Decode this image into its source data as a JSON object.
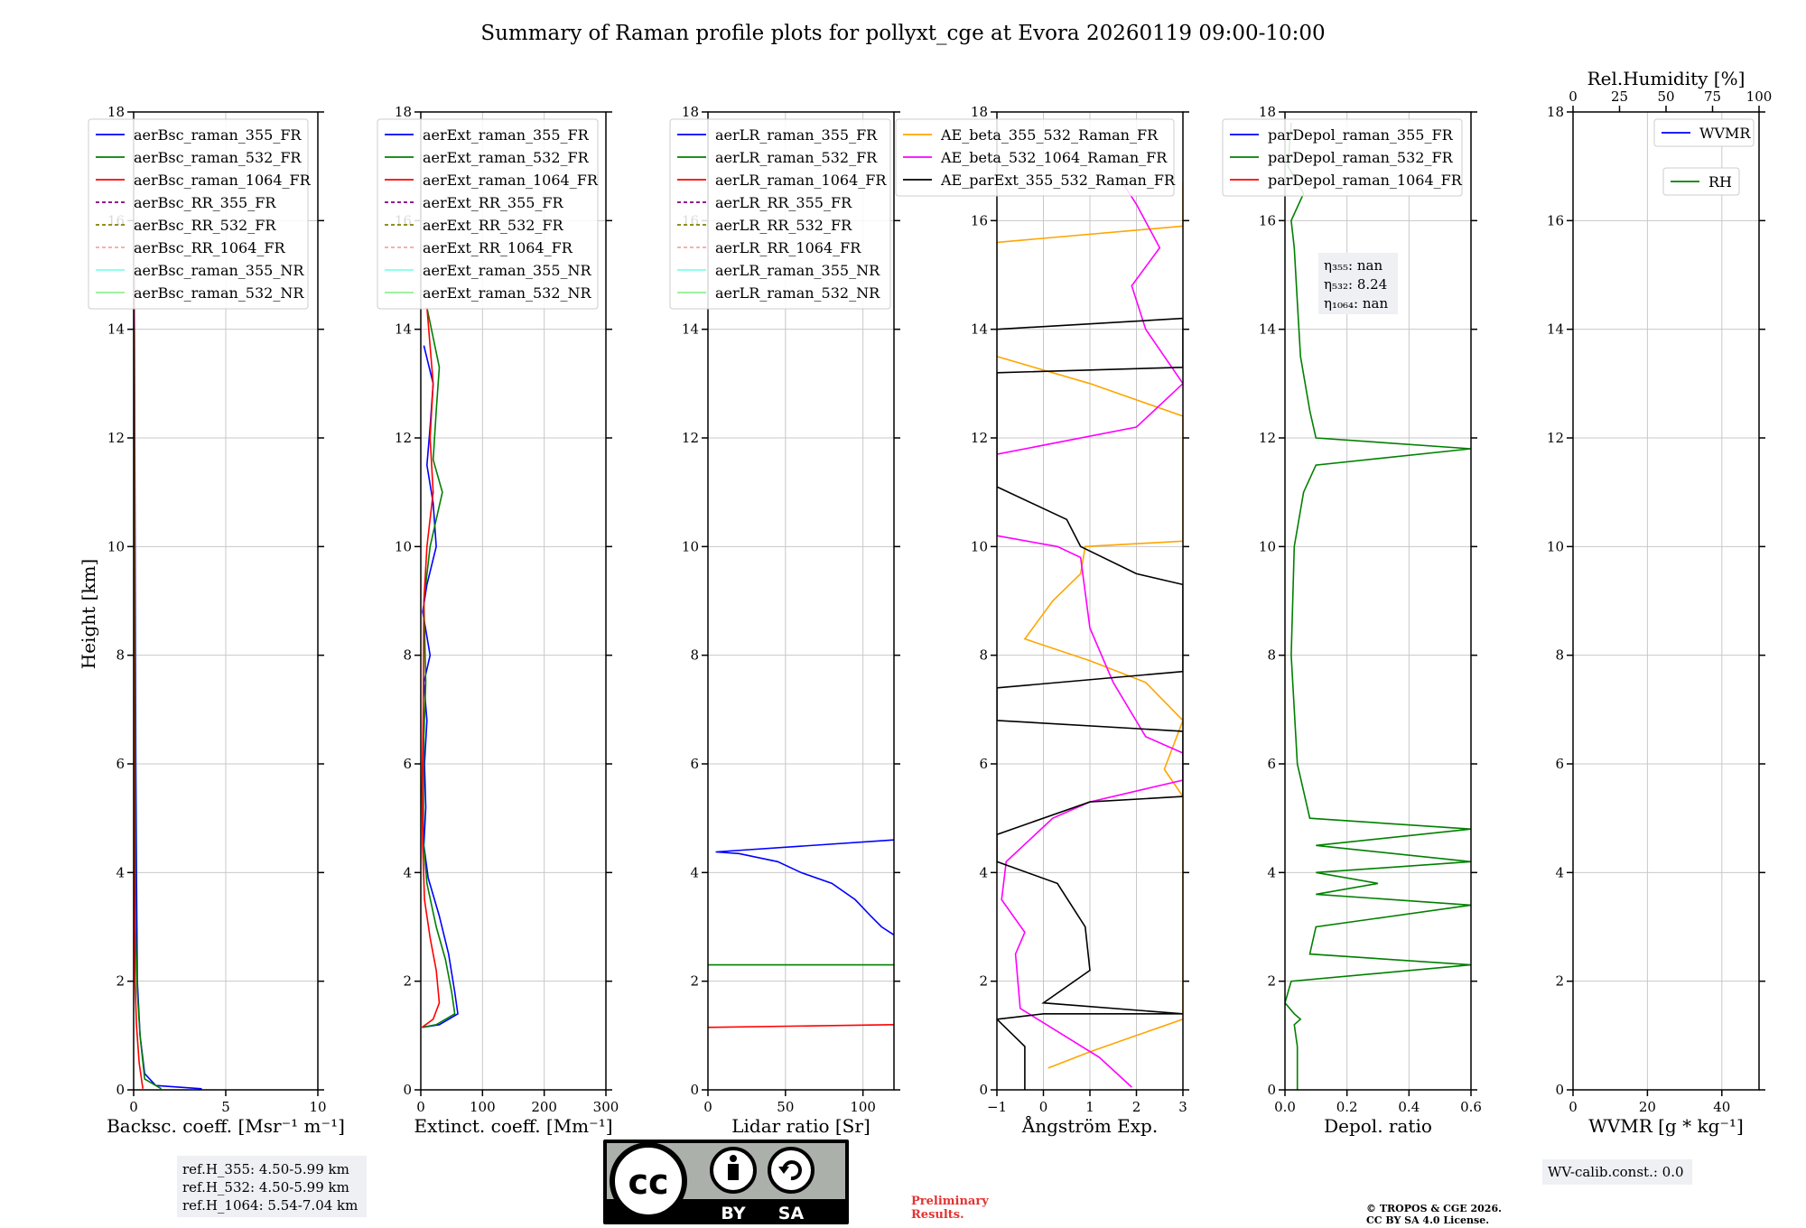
{
  "title": "Summary of Raman profile plots for pollyxt_cge at Evora 20260119 09:00-10:00",
  "ylabel": "Height [km]",
  "colors": {
    "blue": "#0000ff",
    "green": "#008000",
    "red": "#ff0000",
    "purple": "#800080",
    "olive": "#808000",
    "salmon": "#f4a6a6",
    "cyan": "#7fffe8",
    "lightgreen": "#90ee90",
    "orange": "#ffa500",
    "magenta": "#ff00ff",
    "black": "#000000",
    "grid": "#c8c8c8"
  },
  "chart_data": [
    {
      "type": "line",
      "id": "bsc",
      "xlabel": "Backsc. coeff. [Msr⁻¹ m⁻¹]",
      "xlim": [
        0,
        10
      ],
      "ylim": [
        0,
        18
      ],
      "xticks": [
        "0",
        "5",
        "10"
      ],
      "yticks": [
        "0",
        "2",
        "4",
        "6",
        "8",
        "10",
        "12",
        "14",
        "16",
        "18"
      ],
      "legend": [
        "aerBsc_raman_355_FR",
        "aerBsc_raman_532_FR",
        "aerBsc_raman_1064_FR",
        "aerBsc_RR_355_FR",
        "aerBsc_RR_532_FR",
        "aerBsc_RR_1064_FR",
        "aerBsc_raman_355_NR",
        "aerBsc_raman_532_NR"
      ],
      "series": [
        {
          "name": "aerBsc_raman_355_FR",
          "color": "blue",
          "points": [
            [
              3.7,
              0.02
            ],
            [
              1.2,
              0.08
            ],
            [
              0.6,
              0.3
            ],
            [
              0.35,
              1.0
            ],
            [
              0.2,
              2.0
            ],
            [
              0.15,
              4.0
            ],
            [
              0.12,
              6.0
            ],
            [
              0.1,
              8.0
            ],
            [
              0.08,
              10.0
            ],
            [
              0.06,
              12.0
            ],
            [
              0.04,
              14.0
            ],
            [
              0.02,
              15.0
            ]
          ]
        },
        {
          "name": "aerBsc_raman_532_FR",
          "color": "green",
          "points": [
            [
              1.5,
              0.02
            ],
            [
              0.6,
              0.2
            ],
            [
              0.35,
              1.0
            ],
            [
              0.2,
              1.8
            ],
            [
              0.1,
              3.0
            ],
            [
              0.08,
              6.0
            ],
            [
              0.06,
              10.0
            ],
            [
              0.04,
              14.0
            ]
          ]
        },
        {
          "name": "aerBsc_raman_1064_FR",
          "color": "red",
          "points": [
            [
              0.5,
              0.02
            ],
            [
              0.3,
              0.5
            ],
            [
              0.15,
              1.2
            ],
            [
              0.08,
              2.0
            ],
            [
              0.04,
              4.0
            ],
            [
              0.03,
              8.0
            ],
            [
              0.02,
              12.0
            ],
            [
              0.02,
              15.0
            ]
          ]
        }
      ]
    },
    {
      "type": "line",
      "id": "ext",
      "xlabel": "Extinct. coeff. [Mm⁻¹]",
      "xlim": [
        0,
        300
      ],
      "ylim": [
        0,
        18
      ],
      "xticks": [
        "0",
        "100",
        "200",
        "300"
      ],
      "yticks": [
        "0",
        "2",
        "4",
        "6",
        "8",
        "10",
        "12",
        "14",
        "16",
        "18"
      ],
      "legend": [
        "aerExt_raman_355_FR",
        "aerExt_raman_532_FR",
        "aerExt_raman_1064_FR",
        "aerExt_RR_355_FR",
        "aerExt_RR_532_FR",
        "aerExt_RR_1064_FR",
        "aerExt_raman_355_NR",
        "aerExt_raman_532_NR"
      ],
      "series": [
        {
          "name": "aerExt_raman_355_FR",
          "color": "blue",
          "points": [
            [
              2,
              1.15
            ],
            [
              30,
              1.2
            ],
            [
              60,
              1.4
            ],
            [
              55,
              1.8
            ],
            [
              45,
              2.5
            ],
            [
              30,
              3.2
            ],
            [
              12,
              3.9
            ],
            [
              5,
              4.5
            ],
            [
              8,
              5.2
            ],
            [
              6,
              6.0
            ],
            [
              10,
              6.8
            ],
            [
              5,
              7.5
            ],
            [
              15,
              8.0
            ],
            [
              3,
              8.8
            ],
            [
              10,
              9.3
            ],
            [
              25,
              10.0
            ],
            [
              20,
              10.8
            ],
            [
              10,
              11.5
            ],
            [
              15,
              12.2
            ],
            [
              20,
              13.0
            ],
            [
              5,
              13.7
            ]
          ]
        },
        {
          "name": "aerExt_raman_532_FR",
          "color": "green",
          "points": [
            [
              2,
              1.15
            ],
            [
              25,
              1.2
            ],
            [
              55,
              1.4
            ],
            [
              50,
              1.8
            ],
            [
              40,
              2.4
            ],
            [
              25,
              3.0
            ],
            [
              10,
              3.8
            ],
            [
              4,
              4.6
            ],
            [
              5,
              6.5
            ],
            [
              8,
              7.5
            ],
            [
              5,
              9.0
            ],
            [
              15,
              10.0
            ],
            [
              35,
              11.0
            ],
            [
              20,
              11.6
            ],
            [
              25,
              12.5
            ],
            [
              30,
              13.3
            ],
            [
              10,
              14.4
            ]
          ]
        },
        {
          "name": "aerExt_raman_1064_FR",
          "color": "red",
          "points": [
            [
              2,
              1.15
            ],
            [
              20,
              1.3
            ],
            [
              30,
              1.6
            ],
            [
              25,
              2.2
            ],
            [
              15,
              2.8
            ],
            [
              6,
              3.5
            ],
            [
              3,
              4.5
            ],
            [
              2,
              5.5
            ],
            [
              4,
              7.0
            ],
            [
              5,
              9.0
            ],
            [
              10,
              10.0
            ],
            [
              20,
              11.0
            ],
            [
              15,
              12.0
            ],
            [
              20,
              13.0
            ],
            [
              10,
              14.4
            ]
          ]
        }
      ]
    },
    {
      "type": "line",
      "id": "lr",
      "xlabel": "Lidar ratio [Sr]",
      "xlim": [
        0,
        120
      ],
      "ylim": [
        0,
        18
      ],
      "xticks": [
        "0",
        "50",
        "100"
      ],
      "yticks": [
        "0",
        "2",
        "4",
        "6",
        "8",
        "10",
        "12",
        "14",
        "16",
        "18"
      ],
      "legend": [
        "aerLR_raman_355_FR",
        "aerLR_raman_532_FR",
        "aerLR_raman_1064_FR",
        "aerLR_RR_355_FR",
        "aerLR_RR_532_FR",
        "aerLR_RR_1064_FR",
        "aerLR_raman_355_NR",
        "aerLR_raman_532_NR"
      ],
      "series": [
        {
          "name": "aerLR_raman_355_FR",
          "color": "blue",
          "points": [
            [
              120,
              2.85
            ],
            [
              112,
              3.0
            ],
            [
              105,
              3.2
            ],
            [
              95,
              3.5
            ],
            [
              80,
              3.8
            ],
            [
              60,
              4.0
            ],
            [
              45,
              4.2
            ],
            [
              20,
              4.35
            ],
            [
              5,
              4.38
            ],
            [
              120,
              4.6
            ]
          ]
        },
        {
          "name": "aerLR_raman_532_FR",
          "color": "green",
          "points": [
            [
              0,
              2.3
            ],
            [
              120,
              2.3
            ]
          ]
        },
        {
          "name": "aerLR_raman_1064_FR",
          "color": "red",
          "points": [
            [
              0,
              1.15
            ],
            [
              120,
              1.2
            ]
          ]
        }
      ]
    },
    {
      "type": "line",
      "id": "ae",
      "xlabel": "Ångström Exp.",
      "xlim": [
        -1,
        3
      ],
      "ylim": [
        0,
        18
      ],
      "xticks": [
        "−1",
        "0",
        "1",
        "2",
        "3"
      ],
      "yticks": [
        "0",
        "2",
        "4",
        "6",
        "8",
        "10",
        "12",
        "14",
        "16",
        "18"
      ],
      "legend": [
        "AE_beta_355_532_Raman_FR",
        "AE_beta_532_1064_Raman_FR",
        "AE_parExt_355_532_Raman_FR"
      ],
      "series": [
        {
          "name": "AE_beta_355_532_Raman_FR",
          "color": "orange",
          "points": [
            [
              0.1,
              0.4
            ],
            [
              1.0,
              0.7
            ],
            [
              2.0,
              1.0
            ],
            [
              3.0,
              1.3
            ],
            [
              3.0,
              5.4
            ],
            [
              2.6,
              5.9
            ],
            [
              3.0,
              6.8
            ],
            [
              2.2,
              7.5
            ],
            [
              1.0,
              7.9
            ],
            [
              -0.4,
              8.3
            ],
            [
              0.2,
              9.0
            ],
            [
              0.8,
              9.5
            ],
            [
              0.9,
              10.0
            ],
            [
              3.0,
              10.1
            ],
            [
              3.0,
              12.4
            ],
            [
              1.0,
              13.0
            ],
            [
              -1.0,
              13.5
            ],
            [
              -1.0,
              15.6
            ],
            [
              3.0,
              15.9
            ],
            [
              3.0,
              16.7
            ]
          ]
        },
        {
          "name": "AE_beta_532_1064_Raman_FR",
          "color": "magenta",
          "points": [
            [
              1.9,
              0.05
            ],
            [
              1.2,
              0.6
            ],
            [
              -0.5,
              1.5
            ],
            [
              -0.6,
              2.5
            ],
            [
              -0.4,
              2.9
            ],
            [
              -0.9,
              3.5
            ],
            [
              -0.8,
              4.2
            ],
            [
              0.2,
              5.0
            ],
            [
              1.0,
              5.3
            ],
            [
              3.0,
              5.7
            ],
            [
              3.0,
              6.2
            ],
            [
              2.2,
              6.5
            ],
            [
              1.5,
              7.5
            ],
            [
              1.0,
              8.5
            ],
            [
              0.8,
              9.8
            ],
            [
              0.3,
              10.0
            ],
            [
              -1.0,
              10.2
            ],
            [
              -1.0,
              11.7
            ],
            [
              2.0,
              12.2
            ],
            [
              3.0,
              13.0
            ],
            [
              2.2,
              14.0
            ],
            [
              1.9,
              14.8
            ],
            [
              2.5,
              15.5
            ],
            [
              2.0,
              16.3
            ],
            [
              1.7,
              16.7
            ]
          ]
        },
        {
          "name": "AE_parExt_355_532_Raman_FR",
          "color": "black",
          "points": [
            [
              -0.4,
              0.0
            ],
            [
              -0.4,
              0.8
            ],
            [
              -1.0,
              1.3
            ],
            [
              0.0,
              1.4
            ],
            [
              3.0,
              1.4
            ],
            [
              0.0,
              1.6
            ],
            [
              1.0,
              2.2
            ],
            [
              0.9,
              3.0
            ],
            [
              0.3,
              3.8
            ],
            [
              -1.0,
              4.2
            ],
            [
              -1.0,
              4.7
            ],
            [
              1.0,
              5.3
            ],
            [
              3.0,
              5.4
            ],
            [
              3.0,
              6.6
            ],
            [
              -1.0,
              6.8
            ],
            [
              -1.0,
              7.4
            ],
            [
              3.0,
              7.7
            ],
            [
              3.0,
              9.3
            ],
            [
              2.0,
              9.5
            ],
            [
              0.8,
              10.0
            ],
            [
              0.5,
              10.5
            ],
            [
              -1.0,
              11.1
            ],
            [
              -1.0,
              13.2
            ],
            [
              3.0,
              13.3
            ],
            [
              3.0,
              14.2
            ],
            [
              -1.0,
              14.0
            ]
          ]
        }
      ]
    },
    {
      "type": "line",
      "id": "depol",
      "xlabel": "Depol. ratio",
      "xlim": [
        0.0,
        0.6
      ],
      "ylim": [
        0,
        18
      ],
      "xticks": [
        "0.0",
        "0.2",
        "0.4",
        "0.6"
      ],
      "yticks": [
        "0",
        "2",
        "4",
        "6",
        "8",
        "10",
        "12",
        "14",
        "16",
        "18"
      ],
      "legend": [
        "parDepol_raman_355_FR",
        "parDepol_raman_532_FR",
        "parDepol_raman_1064_FR"
      ],
      "annotation": [
        "η₃₅₅: nan",
        "η₅₃₂: 8.24",
        "η₁₀₆₄: nan"
      ],
      "series": [
        {
          "name": "parDepol_raman_532_FR",
          "color": "green",
          "points": [
            [
              0.04,
              0.0
            ],
            [
              0.04,
              0.8
            ],
            [
              0.03,
              1.2
            ],
            [
              0.05,
              1.3
            ],
            [
              0.03,
              1.4
            ],
            [
              0.0,
              1.6
            ],
            [
              0.02,
              2.0
            ],
            [
              0.6,
              2.3
            ],
            [
              0.08,
              2.5
            ],
            [
              0.1,
              3.0
            ],
            [
              0.6,
              3.4
            ],
            [
              0.1,
              3.6
            ],
            [
              0.3,
              3.8
            ],
            [
              0.1,
              4.0
            ],
            [
              0.6,
              4.2
            ],
            [
              0.1,
              4.5
            ],
            [
              0.6,
              4.8
            ],
            [
              0.08,
              5.0
            ],
            [
              0.06,
              5.5
            ],
            [
              0.04,
              6.0
            ],
            [
              0.02,
              8.0
            ],
            [
              0.03,
              10.0
            ],
            [
              0.06,
              11.0
            ],
            [
              0.1,
              11.5
            ],
            [
              0.6,
              11.8
            ],
            [
              0.1,
              12.0
            ],
            [
              0.08,
              12.5
            ],
            [
              0.05,
              13.5
            ],
            [
              0.04,
              14.5
            ],
            [
              0.03,
              15.5
            ],
            [
              0.02,
              16.0
            ],
            [
              0.06,
              16.5
            ],
            [
              0.01,
              17.0
            ],
            [
              0.02,
              17.8
            ]
          ]
        }
      ]
    },
    {
      "type": "line",
      "id": "wv",
      "xlabel": "WVMR [g * kg⁻¹]",
      "top_xlabel": "Rel.Humidity [%]",
      "xlim": [
        0,
        50
      ],
      "ylim": [
        0,
        18
      ],
      "xticks": [
        "0",
        "20",
        "40"
      ],
      "top_xticks": [
        "0",
        "25",
        "50",
        "75",
        "100"
      ],
      "yticks": [
        "0",
        "2",
        "4",
        "6",
        "8",
        "10",
        "12",
        "14",
        "16",
        "18"
      ],
      "legend": [
        "WVMR",
        "RH"
      ],
      "series": []
    }
  ],
  "footer": {
    "refh": [
      "ref.H_355: 4.50-5.99 km",
      "ref.H_532: 4.50-5.99 km",
      "ref.H_1064: 5.54-7.04 km"
    ],
    "cc_by": "BY",
    "cc_sa": "SA",
    "cc_mark": "cc",
    "preliminary": [
      "Preliminary",
      "Results."
    ],
    "copyright": [
      "© TROPOS & CGE 2026.",
      "CC BY SA 4.0 License."
    ],
    "wv_calib": "WV-calib.const.: 0.0"
  }
}
